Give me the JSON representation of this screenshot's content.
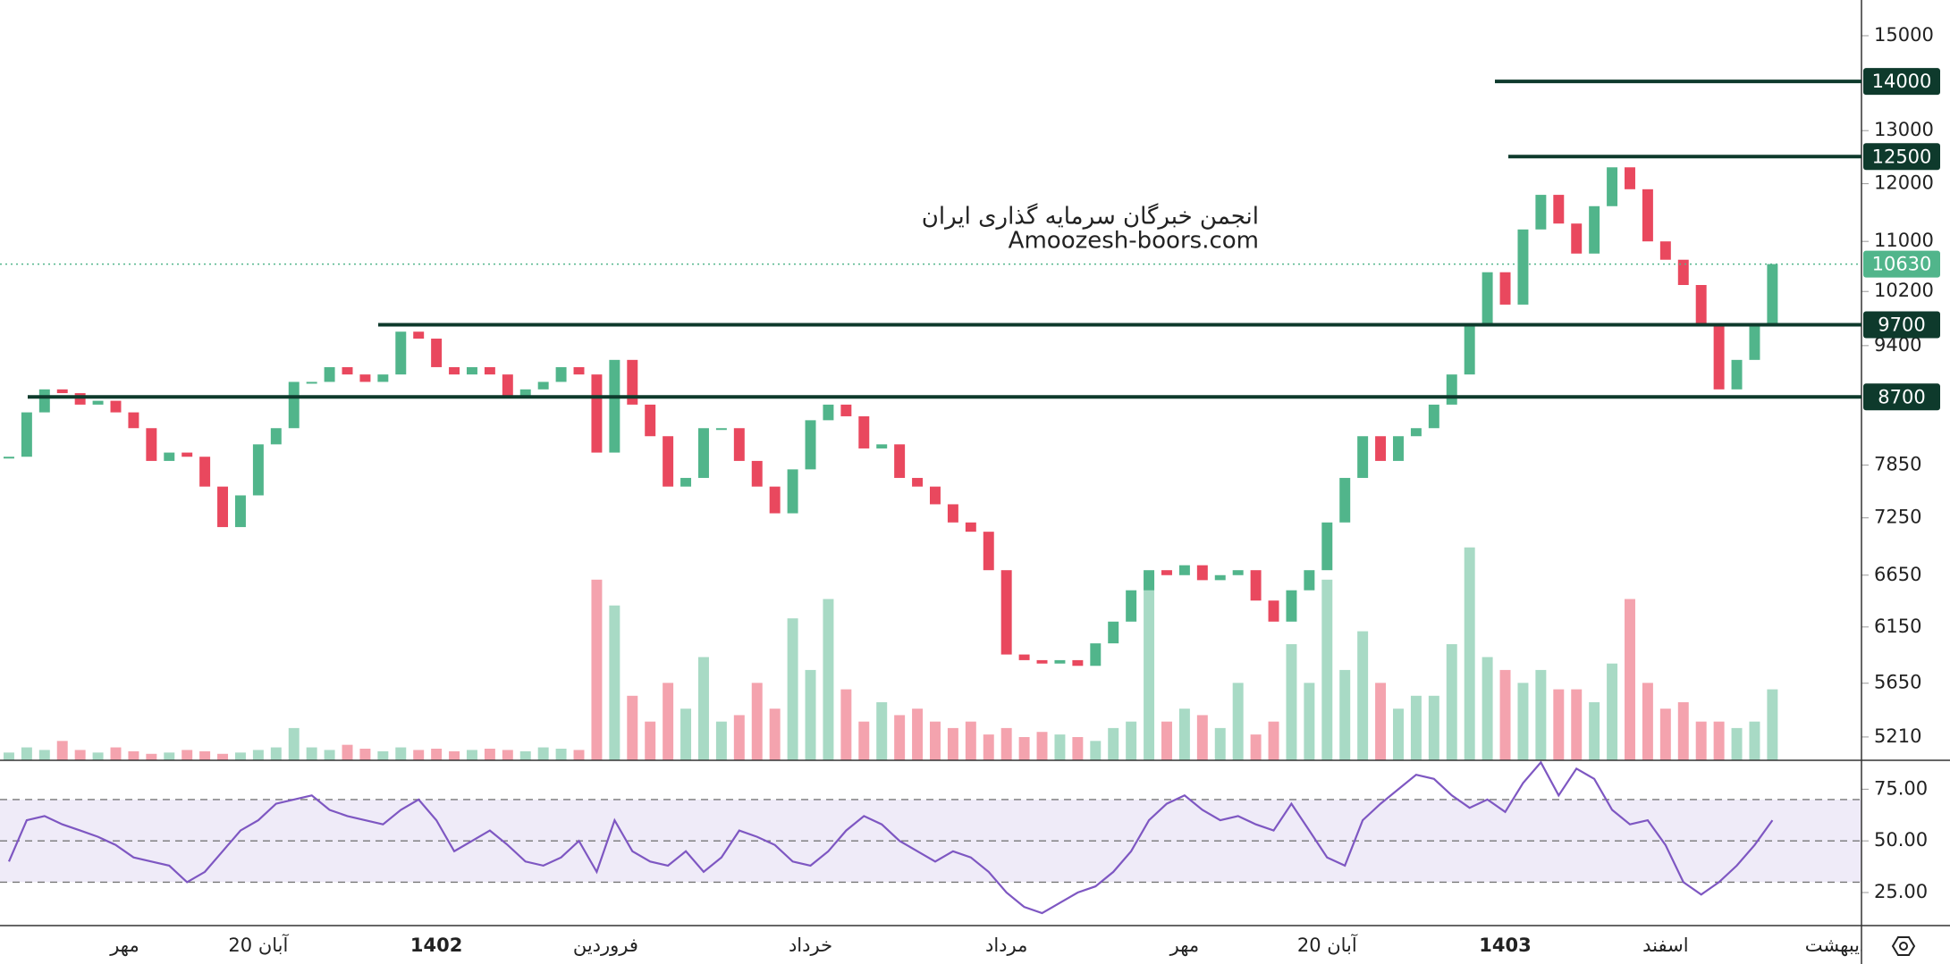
{
  "chart_data": {
    "type": "candlestick",
    "log_scale": true,
    "ylim": [
      5030,
      15830
    ],
    "yticks": [
      15000,
      13000,
      12000,
      11000,
      10200,
      9400,
      7850,
      7250,
      6650,
      6150,
      5650,
      5210
    ],
    "levels": [
      14000,
      12500,
      9700,
      8700
    ],
    "last_price": 10630,
    "up_color": "#51b58b",
    "down_color": "#e9485e",
    "level_color": "#0e3a2c",
    "xlim": [
      -0.5,
      104
    ],
    "xticks": [
      {
        "value": 6.5,
        "label": "مهر"
      },
      {
        "value": 14,
        "label": "20 آبان"
      },
      {
        "value": 24,
        "label": "1402",
        "bold": true
      },
      {
        "value": 33.5,
        "label": "فروردین"
      },
      {
        "value": 45,
        "label": "خرداد"
      },
      {
        "value": 56,
        "label": "مرداد"
      },
      {
        "value": 66,
        "label": "مهر"
      },
      {
        "value": 74,
        "label": "20 آبان"
      },
      {
        "value": 84,
        "label": "1403",
        "bold": true
      },
      {
        "value": 93,
        "label": "اسفند"
      },
      {
        "value": 103,
        "label": "اردیبهشت"
      }
    ],
    "watermark": [
      "انجمن خبرگان سرمایه گذاری ایران",
      "Amoozesh-boors.com"
    ],
    "close": [
      7950,
      8500,
      8800,
      8750,
      8600,
      8650,
      8500,
      8300,
      7900,
      8000,
      7950,
      7600,
      7150,
      7500,
      8100,
      8300,
      8900,
      8900,
      9100,
      9000,
      8900,
      9000,
      9600,
      9500,
      9100,
      9000,
      9100,
      9000,
      8700,
      8800,
      8900,
      9100,
      9000,
      8000,
      9200,
      8600,
      8200,
      7600,
      7700,
      8300,
      8300,
      7900,
      7600,
      7300,
      7800,
      8400,
      8600,
      8450,
      8050,
      8100,
      7700,
      7600,
      7400,
      7200,
      7100,
      6700,
      5900,
      5850,
      5820,
      5850,
      5800,
      6000,
      6200,
      6500,
      6700,
      6650,
      6750,
      6600,
      6650,
      6700,
      6400,
      6200,
      6500,
      6700,
      7200,
      7700,
      8200,
      7900,
      8200,
      8300,
      8600,
      9000,
      9700,
      10500,
      10000,
      11200,
      11800,
      11300,
      10800,
      11600,
      12300,
      11900,
      11000,
      10700,
      10300,
      9700,
      8800,
      9200,
      9700,
      10630
    ],
    "volume": [
      6,
      10,
      8,
      15,
      8,
      6,
      10,
      7,
      5,
      6,
      8,
      7,
      5,
      6,
      8,
      10,
      25,
      10,
      8,
      12,
      9,
      7,
      10,
      8,
      9,
      7,
      8,
      9,
      8,
      7,
      10,
      9,
      8,
      140,
      120,
      50,
      30,
      60,
      40,
      80,
      30,
      35,
      60,
      40,
      110,
      70,
      125,
      55,
      30,
      45,
      35,
      40,
      30,
      25,
      30,
      20,
      25,
      18,
      22,
      20,
      18,
      15,
      25,
      30,
      145,
      30,
      40,
      35,
      25,
      60,
      20,
      30,
      90,
      60,
      140,
      70,
      100,
      60,
      40,
      50,
      50,
      90,
      165,
      80,
      70,
      60,
      70,
      55,
      55,
      45,
      75,
      125,
      60,
      40,
      45,
      30,
      30,
      25,
      30,
      55
    ],
    "rsi": {
      "type": "line",
      "color": "#7e57c2",
      "ylim": [
        9,
        89
      ],
      "yticks": [
        {
          "value": 75,
          "label": "75.00"
        },
        {
          "value": 50,
          "label": "50.00"
        },
        {
          "value": 25,
          "label": "25.00"
        }
      ],
      "levels": [
        30,
        50,
        70
      ],
      "values": [
        40,
        60,
        62,
        58,
        55,
        52,
        48,
        42,
        40,
        38,
        30,
        35,
        45,
        55,
        60,
        68,
        70,
        72,
        65,
        62,
        60,
        58,
        65,
        70,
        60,
        45,
        50,
        55,
        48,
        40,
        38,
        42,
        50,
        35,
        60,
        45,
        40,
        38,
        45,
        35,
        42,
        55,
        52,
        48,
        40,
        38,
        45,
        55,
        62,
        58,
        50,
        45,
        40,
        45,
        42,
        35,
        25,
        18,
        15,
        20,
        25,
        28,
        35,
        45,
        60,
        68,
        72,
        65,
        60,
        62,
        58,
        55,
        68,
        55,
        42,
        38,
        60,
        68,
        75,
        82,
        80,
        72,
        66,
        70,
        64,
        78,
        88,
        72,
        85,
        80,
        65,
        58,
        60,
        48,
        30,
        24,
        30,
        38,
        48,
        60
      ]
    }
  }
}
